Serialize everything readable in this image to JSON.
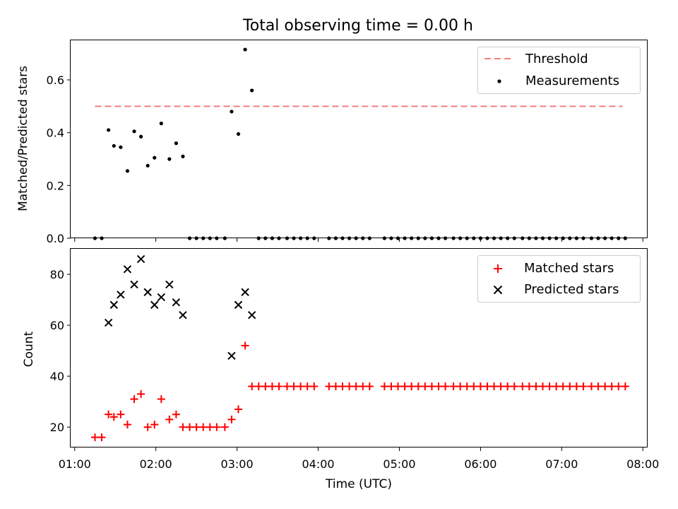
{
  "chart_data": {
    "type": "scatter",
    "title": "Total observing time = 0.00 h",
    "xlabel": "Time (UTC)",
    "x_tick_labels": [
      "01:00",
      "02:00",
      "03:00",
      "04:00",
      "05:00",
      "06:00",
      "07:00",
      "08:00"
    ],
    "panels": [
      {
        "ylabel": "Matched/Predicted stars",
        "ylim": [
          0,
          0.75
        ],
        "y_tick_labels": [
          "0.0",
          "0.2",
          "0.4",
          "0.6"
        ],
        "legend_position": "top-right",
        "threshold": {
          "name": "Threshold",
          "y": 0.5,
          "x_range": [
            "01:15",
            "07:45"
          ],
          "color": "#f47f7f"
        },
        "series": [
          {
            "name": "Measurements",
            "color": "#000000",
            "points": [
              [
                "01:15",
                0.0
              ],
              [
                "01:20",
                0.0
              ],
              [
                "01:25",
                0.41
              ],
              [
                "01:29",
                0.35
              ],
              [
                "01:34",
                0.345
              ],
              [
                "01:39",
                0.255
              ],
              [
                "01:44",
                0.405
              ],
              [
                "01:49",
                0.385
              ],
              [
                "01:54",
                0.275
              ],
              [
                "01:59",
                0.305
              ],
              [
                "02:04",
                0.435
              ],
              [
                "02:10",
                0.3
              ],
              [
                "02:15",
                0.36
              ],
              [
                "02:20",
                0.31
              ],
              [
                "02:25",
                0.0
              ],
              [
                "02:30",
                0.0
              ],
              [
                "02:35",
                0.0
              ],
              [
                "02:40",
                0.0
              ],
              [
                "02:45",
                0.0
              ],
              [
                "02:51",
                0.0
              ],
              [
                "02:56",
                0.48
              ],
              [
                "03:01",
                0.395
              ],
              [
                "03:06",
                0.715
              ],
              [
                "03:11",
                0.56
              ],
              [
                "03:16",
                0.0
              ],
              [
                "03:21",
                0.0
              ],
              [
                "03:26",
                0.0
              ],
              [
                "03:31",
                0.0
              ],
              [
                "03:37",
                0.0
              ],
              [
                "03:42",
                0.0
              ],
              [
                "03:47",
                0.0
              ],
              [
                "03:52",
                0.0
              ],
              [
                "03:57",
                0.0
              ],
              [
                "04:08",
                0.0
              ],
              [
                "04:13",
                0.0
              ],
              [
                "04:18",
                0.0
              ],
              [
                "04:23",
                0.0
              ],
              [
                "04:28",
                0.0
              ],
              [
                "04:33",
                0.0
              ],
              [
                "04:38",
                0.0
              ],
              [
                "04:49",
                0.0
              ],
              [
                "04:54",
                0.0
              ],
              [
                "04:59",
                0.0
              ],
              [
                "05:04",
                0.0
              ],
              [
                "05:09",
                0.0
              ],
              [
                "05:14",
                0.0
              ],
              [
                "05:19",
                0.0
              ],
              [
                "05:24",
                0.0
              ],
              [
                "05:29",
                0.0
              ],
              [
                "05:34",
                0.0
              ],
              [
                "05:40",
                0.0
              ],
              [
                "05:45",
                0.0
              ],
              [
                "05:50",
                0.0
              ],
              [
                "05:55",
                0.0
              ],
              [
                "06:00",
                0.0
              ],
              [
                "06:05",
                0.0
              ],
              [
                "06:10",
                0.0
              ],
              [
                "06:15",
                0.0
              ],
              [
                "06:20",
                0.0
              ],
              [
                "06:25",
                0.0
              ],
              [
                "06:31",
                0.0
              ],
              [
                "06:36",
                0.0
              ],
              [
                "06:41",
                0.0
              ],
              [
                "06:46",
                0.0
              ],
              [
                "06:51",
                0.0
              ],
              [
                "06:56",
                0.0
              ],
              [
                "07:01",
                0.0
              ],
              [
                "07:06",
                0.0
              ],
              [
                "07:11",
                0.0
              ],
              [
                "07:16",
                0.0
              ],
              [
                "07:22",
                0.0
              ],
              [
                "07:27",
                0.0
              ],
              [
                "07:32",
                0.0
              ],
              [
                "07:37",
                0.0
              ],
              [
                "07:42",
                0.0
              ],
              [
                "07:47",
                0.0
              ]
            ]
          }
        ]
      },
      {
        "ylabel": "Count",
        "ylim": [
          12,
          90
        ],
        "y_tick_labels": [
          "20",
          "40",
          "60",
          "80"
        ],
        "legend_position": "top-right",
        "series": [
          {
            "name": "Matched stars",
            "color": "#ff0000",
            "marker": "plus",
            "points": [
              [
                "01:15",
                16
              ],
              [
                "01:20",
                16
              ],
              [
                "01:25",
                25
              ],
              [
                "01:29",
                24
              ],
              [
                "01:34",
                25
              ],
              [
                "01:39",
                21
              ],
              [
                "01:44",
                31
              ],
              [
                "01:49",
                33
              ],
              [
                "01:54",
                20
              ],
              [
                "01:59",
                21
              ],
              [
                "02:04",
                31
              ],
              [
                "02:10",
                23
              ],
              [
                "02:15",
                25
              ],
              [
                "02:20",
                20
              ],
              [
                "02:25",
                20
              ],
              [
                "02:30",
                20
              ],
              [
                "02:35",
                20
              ],
              [
                "02:40",
                20
              ],
              [
                "02:45",
                20
              ],
              [
                "02:51",
                20
              ],
              [
                "02:56",
                23
              ],
              [
                "03:01",
                27
              ],
              [
                "03:06",
                52
              ],
              [
                "03:11",
                36
              ],
              [
                "03:16",
                36
              ],
              [
                "03:21",
                36
              ],
              [
                "03:26",
                36
              ],
              [
                "03:31",
                36
              ],
              [
                "03:37",
                36
              ],
              [
                "03:42",
                36
              ],
              [
                "03:47",
                36
              ],
              [
                "03:52",
                36
              ],
              [
                "03:57",
                36
              ],
              [
                "04:08",
                36
              ],
              [
                "04:13",
                36
              ],
              [
                "04:18",
                36
              ],
              [
                "04:23",
                36
              ],
              [
                "04:28",
                36
              ],
              [
                "04:33",
                36
              ],
              [
                "04:38",
                36
              ],
              [
                "04:49",
                36
              ],
              [
                "04:54",
                36
              ],
              [
                "04:59",
                36
              ],
              [
                "05:04",
                36
              ],
              [
                "05:09",
                36
              ],
              [
                "05:14",
                36
              ],
              [
                "05:19",
                36
              ],
              [
                "05:24",
                36
              ],
              [
                "05:29",
                36
              ],
              [
                "05:34",
                36
              ],
              [
                "05:40",
                36
              ],
              [
                "05:45",
                36
              ],
              [
                "05:50",
                36
              ],
              [
                "05:55",
                36
              ],
              [
                "06:00",
                36
              ],
              [
                "06:05",
                36
              ],
              [
                "06:10",
                36
              ],
              [
                "06:15",
                36
              ],
              [
                "06:20",
                36
              ],
              [
                "06:25",
                36
              ],
              [
                "06:31",
                36
              ],
              [
                "06:36",
                36
              ],
              [
                "06:41",
                36
              ],
              [
                "06:46",
                36
              ],
              [
                "06:51",
                36
              ],
              [
                "06:56",
                36
              ],
              [
                "07:01",
                36
              ],
              [
                "07:06",
                36
              ],
              [
                "07:11",
                36
              ],
              [
                "07:16",
                36
              ],
              [
                "07:22",
                36
              ],
              [
                "07:27",
                36
              ],
              [
                "07:32",
                36
              ],
              [
                "07:37",
                36
              ],
              [
                "07:42",
                36
              ],
              [
                "07:47",
                36
              ]
            ]
          },
          {
            "name": "Predicted stars",
            "color": "#000000",
            "marker": "x",
            "points": [
              [
                "01:25",
                61
              ],
              [
                "01:29",
                68
              ],
              [
                "01:34",
                72
              ],
              [
                "01:39",
                82
              ],
              [
                "01:44",
                76
              ],
              [
                "01:49",
                86
              ],
              [
                "01:54",
                73
              ],
              [
                "01:59",
                68
              ],
              [
                "02:04",
                71
              ],
              [
                "02:10",
                76
              ],
              [
                "02:15",
                69
              ],
              [
                "02:20",
                64
              ],
              [
                "02:56",
                48
              ],
              [
                "03:01",
                68
              ],
              [
                "03:06",
                73
              ],
              [
                "03:11",
                64
              ]
            ]
          }
        ]
      }
    ]
  }
}
